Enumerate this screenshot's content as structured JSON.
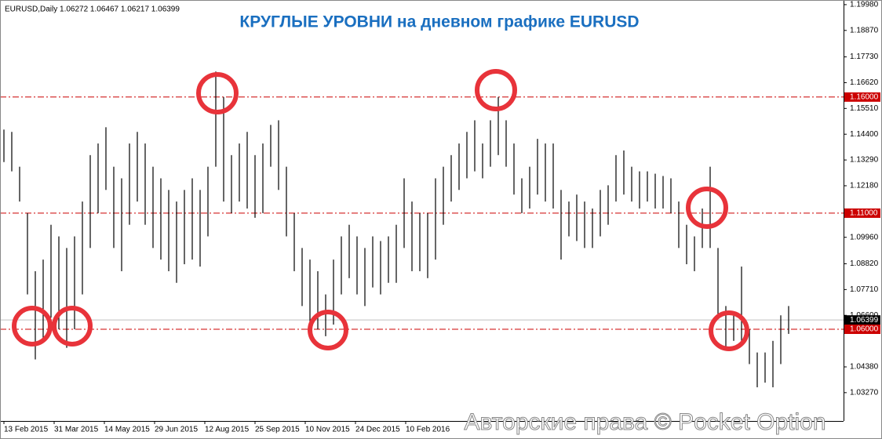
{
  "chart_data": {
    "type": "hlc",
    "title": "КРУГЛЫЕ УРОВНИ на дневном графике EURUSD",
    "header": "EURUSD,Daily  1.06272 1.06467 1.06217 1.06399",
    "watermark": "Авторские права © Pocket Option",
    "ylim": [
      1.0205,
      1.2018
    ],
    "yticks": [
      {
        "value": 1.1998,
        "label": "1.19980"
      },
      {
        "value": 1.1887,
        "label": "1.18870"
      },
      {
        "value": 1.1773,
        "label": "1.17730"
      },
      {
        "value": 1.1662,
        "label": "1.16620"
      },
      {
        "value": 1.1551,
        "label": "1.15510"
      },
      {
        "value": 1.144,
        "label": "1.14400"
      },
      {
        "value": 1.1329,
        "label": "1.13290"
      },
      {
        "value": 1.1218,
        "label": "1.12180"
      },
      {
        "value": 1.0996,
        "label": "1.09960"
      },
      {
        "value": 1.0882,
        "label": "1.08820"
      },
      {
        "value": 1.0771,
        "label": "1.07710"
      },
      {
        "value": 1.066,
        "label": "1.06600"
      },
      {
        "value": 1.0438,
        "label": "1.04380"
      },
      {
        "value": 1.0327,
        "label": "1.03270"
      }
    ],
    "levels": [
      {
        "value": 1.16,
        "label": "1.16000"
      },
      {
        "value": 1.11,
        "label": "1.11000"
      },
      {
        "value": 1.06,
        "label": "1.06000"
      }
    ],
    "level_color": "#cc0000",
    "current": {
      "value": 1.06399,
      "label": "1.06399"
    },
    "x_labels": [
      "13 Feb 2015",
      "31 Mar 2015",
      "14 May 2015",
      "29 Jun 2015",
      "12 Aug 2015",
      "25 Sep 2015",
      "10 Nov 2015",
      "24 Dec 2015",
      "10 Feb 2016"
    ],
    "series": {
      "color": "#000000",
      "high": [
        1.146,
        1.145,
        1.13,
        1.11,
        1.085,
        1.09,
        1.105,
        1.1,
        1.095,
        1.1,
        1.115,
        1.135,
        1.14,
        1.147,
        1.13,
        1.125,
        1.14,
        1.145,
        1.14,
        1.13,
        1.125,
        1.12,
        1.115,
        1.12,
        1.125,
        1.12,
        1.13,
        1.171,
        1.16,
        1.135,
        1.14,
        1.145,
        1.135,
        1.14,
        1.148,
        1.15,
        1.13,
        1.11,
        1.095,
        1.09,
        1.085,
        1.075,
        1.09,
        1.1,
        1.105,
        1.1,
        1.095,
        1.1,
        1.098,
        1.1,
        1.105,
        1.125,
        1.115,
        1.11,
        1.11,
        1.125,
        1.13,
        1.135,
        1.14,
        1.145,
        1.15,
        1.14,
        1.15,
        1.16,
        1.15,
        1.14,
        1.125,
        1.13,
        1.142,
        1.14,
        1.14,
        1.12,
        1.115,
        1.118,
        1.115,
        1.112,
        1.12,
        1.122,
        1.135,
        1.137,
        1.13,
        1.128,
        1.128,
        1.127,
        1.126,
        1.125,
        1.115,
        1.105,
        1.1,
        1.112,
        1.13,
        1.095,
        1.07,
        1.066,
        1.087,
        1.06,
        1.05,
        1.05,
        1.055,
        1.066,
        1.07
      ],
      "low": [
        1.132,
        1.128,
        1.115,
        1.075,
        1.047,
        1.055,
        1.065,
        1.06,
        1.052,
        1.06,
        1.075,
        1.095,
        1.11,
        1.12,
        1.095,
        1.085,
        1.105,
        1.115,
        1.105,
        1.095,
        1.09,
        1.085,
        1.08,
        1.088,
        1.09,
        1.087,
        1.1,
        1.13,
        1.115,
        1.11,
        1.115,
        1.112,
        1.108,
        1.11,
        1.13,
        1.12,
        1.1,
        1.085,
        1.07,
        1.062,
        1.06,
        1.057,
        1.062,
        1.075,
        1.082,
        1.075,
        1.07,
        1.078,
        1.075,
        1.08,
        1.08,
        1.095,
        1.085,
        1.085,
        1.082,
        1.09,
        1.105,
        1.115,
        1.12,
        1.125,
        1.128,
        1.125,
        1.13,
        1.135,
        1.13,
        1.118,
        1.11,
        1.112,
        1.118,
        1.115,
        1.112,
        1.09,
        1.1,
        1.098,
        1.095,
        1.095,
        1.1,
        1.105,
        1.115,
        1.118,
        1.115,
        1.112,
        1.115,
        1.112,
        1.112,
        1.11,
        1.095,
        1.088,
        1.085,
        1.095,
        1.095,
        1.065,
        1.052,
        1.055,
        1.055,
        1.045,
        1.035,
        1.037,
        1.035,
        1.045,
        1.058
      ]
    }
  }
}
